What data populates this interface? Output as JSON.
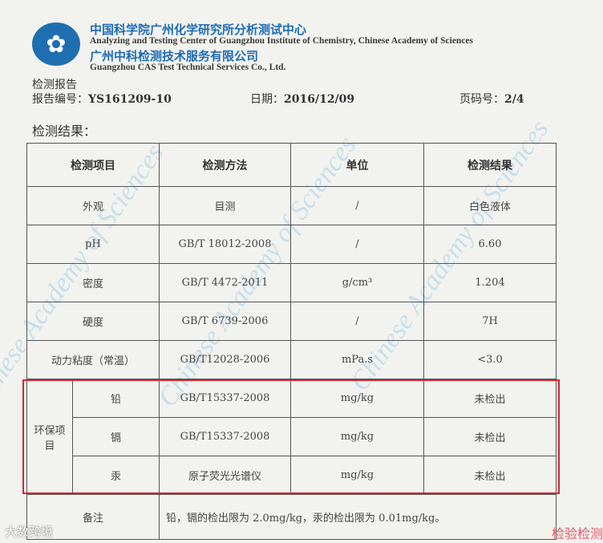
{
  "header": {
    "cn_center": "中国科学院广州化学研究所分析测试中心",
    "en_center": "Analyzing and Testing Center of Guangzhou Institute of Chemistry, Chinese Academy of Sciences",
    "cn_company": "广州中科检测技术服务有限公司",
    "en_company": "Guangzhou CAS Test Technical Services Co., Ltd."
  },
  "report": {
    "title": "检测报告",
    "number_label": "报告编号：",
    "number": "YS161209-10",
    "date_label": "日期：",
    "date": "2016/12/09",
    "page_label": "页码号：",
    "page": "2/4",
    "results_heading": "检测结果："
  },
  "table": {
    "headers": [
      "检测项目",
      "检测方法",
      "单位",
      "检测结果"
    ],
    "rows": [
      {
        "item": "外观",
        "method": "目测",
        "unit": "/",
        "result": "白色液体"
      },
      {
        "item": "pH",
        "method": "GB/T 18012-2008",
        "unit": "/",
        "result": "6.60"
      },
      {
        "item": "密度",
        "method": "GB/T 4472-2011",
        "unit": "g/cm³",
        "result": "1.204"
      },
      {
        "item": "硬度",
        "method": "GB/T 6739-2006",
        "unit": "/",
        "result": "7H"
      },
      {
        "item": "动力粘度（常温）",
        "method": "GB/T12028-2006",
        "unit": "mPa.s",
        "result": "<3.0"
      }
    ],
    "env_group": "环保项目",
    "env_rows": [
      {
        "item": "铅",
        "method": "GB/T15337-2008",
        "unit": "mg/kg",
        "result": "未检出"
      },
      {
        "item": "镉",
        "method": "GB/T15337-2008",
        "unit": "mg/kg",
        "result": "未检出"
      },
      {
        "item": "汞",
        "method": "原子荧光光谱仪",
        "unit": "mg/kg",
        "result": "未检出"
      }
    ],
    "note_label": "备注",
    "note": "铅，镉的检出限为 2.0mg/kg，汞的检出限为 0.01mg/kg。"
  },
  "watermark": "Chinese Academy of Sciences",
  "stamp": "检验检测",
  "brand": "大数跨境",
  "colors": {
    "blue": "#1e6cb6",
    "highlight": "#d3262f"
  }
}
